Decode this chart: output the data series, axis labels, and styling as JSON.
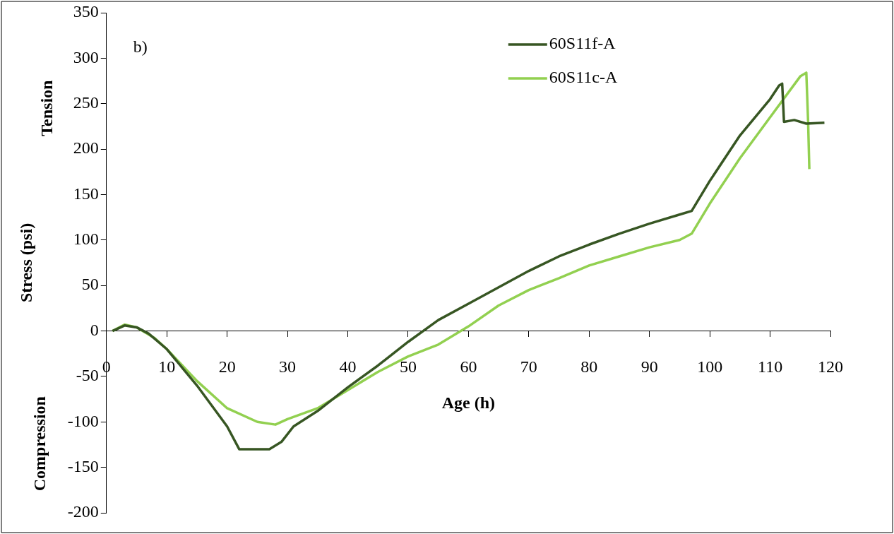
{
  "chart_data": {
    "type": "line",
    "ylabel": "Stress (psi)",
    "xlabel": "Age (h)",
    "annotations": [
      "b)",
      "Tension",
      "Compression"
    ],
    "xlim": [
      0,
      120
    ],
    "xticks": [
      0,
      10,
      20,
      30,
      40,
      50,
      60,
      70,
      80,
      90,
      100,
      110,
      120
    ],
    "ylim": [
      -200,
      350
    ],
    "yticks": [
      -200,
      -150,
      -100,
      -50,
      0,
      50,
      100,
      150,
      200,
      250,
      300,
      350
    ],
    "grid": false,
    "legend": "top right",
    "marker": "none",
    "line_style": "solid",
    "series": [
      {
        "name": "60S11f-A",
        "color": "#375623",
        "x": [
          1,
          3,
          5,
          7,
          10,
          15,
          20,
          22,
          27,
          29,
          31,
          35,
          40,
          45,
          50,
          55,
          60,
          65,
          70,
          75,
          80,
          85,
          90,
          95,
          97,
          100,
          105,
          110,
          111.5,
          112,
          112.3,
          114,
          116,
          119
        ],
        "values": [
          0,
          6,
          4,
          -3,
          -20,
          -60,
          -105,
          -130,
          -130,
          -122,
          -105,
          -88,
          -62,
          -38,
          -12,
          12,
          30,
          48,
          66,
          82,
          95,
          107,
          118,
          128,
          132,
          165,
          215,
          255,
          270,
          272,
          230,
          232,
          228,
          229
        ]
      },
      {
        "name": "60S11c-A",
        "color": "#92d050",
        "x": [
          1,
          3,
          5,
          8,
          10,
          15,
          20,
          25,
          28,
          30,
          35,
          40,
          45,
          50,
          55,
          60,
          65,
          70,
          75,
          80,
          85,
          90,
          95,
          97,
          100,
          105,
          110,
          115,
          116,
          116.3,
          116.5
        ],
        "values": [
          0,
          7,
          4,
          -8,
          -20,
          -55,
          -85,
          -100,
          -103,
          -97,
          -85,
          -65,
          -45,
          -28,
          -15,
          5,
          28,
          45,
          58,
          72,
          82,
          92,
          100,
          107,
          140,
          190,
          235,
          280,
          284,
          230,
          178
        ]
      }
    ]
  }
}
